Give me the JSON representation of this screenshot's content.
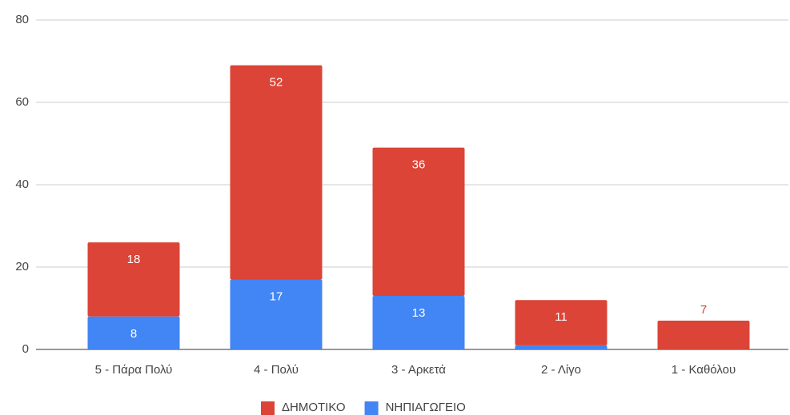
{
  "chart_data": {
    "type": "stacked-bar",
    "categories": [
      "5 - Πάρα Πολύ",
      "4 - Πολύ",
      "3 - Αρκετά",
      "2 - Λίγο",
      "1 - Καθόλου"
    ],
    "series": [
      {
        "name": "ΝΗΠΙΑΓΩΓΕΙΟ",
        "color": "#4285f4",
        "values": [
          8,
          17,
          13,
          1,
          0
        ]
      },
      {
        "name": "ΔΗΜΟΤΙΚΟ",
        "color": "#db4437",
        "values": [
          18,
          52,
          36,
          11,
          7
        ]
      }
    ],
    "legend_order": [
      1,
      0
    ],
    "ylim": [
      0,
      80
    ],
    "yticks": [
      0,
      20,
      40,
      60,
      80
    ],
    "grid": true,
    "legend": "bottom"
  }
}
